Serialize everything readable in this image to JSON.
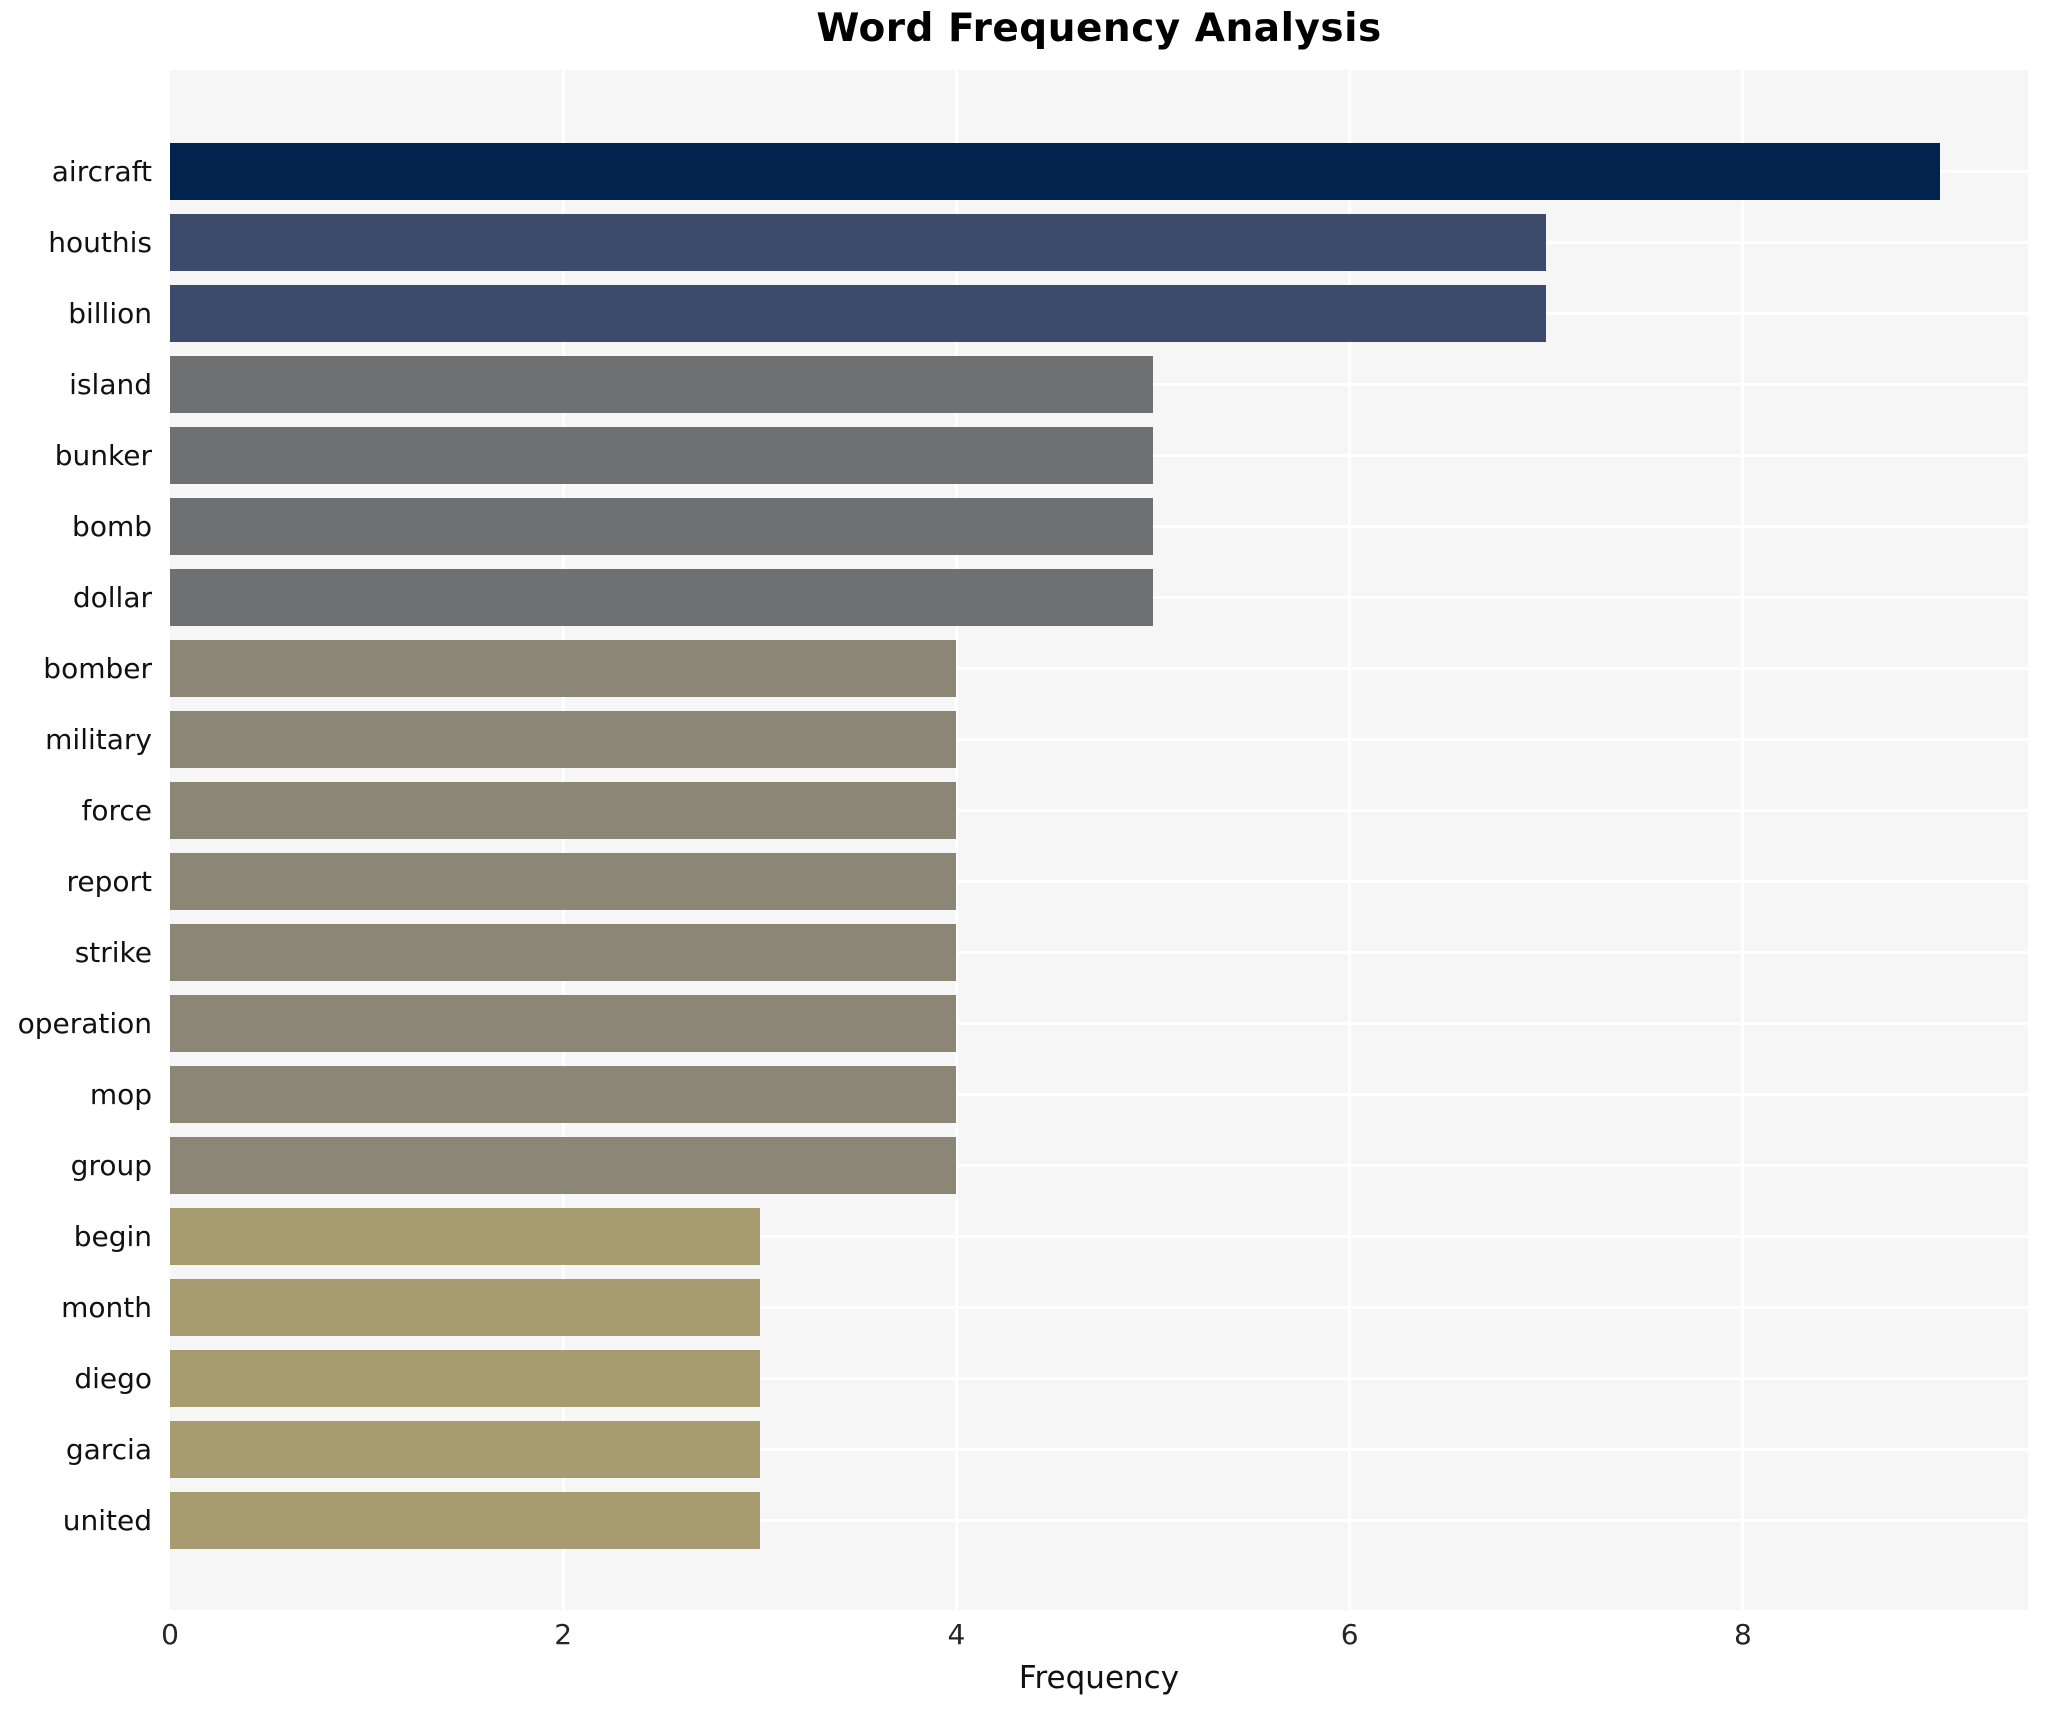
{
  "title": "Word Frequency Analysis",
  "x_axis": {
    "label": "Frequency",
    "ticks": [
      0,
      2,
      4,
      6,
      8
    ]
  },
  "colors": {
    "plot_background": "#f6f6f7",
    "gridline": "#ffffff",
    "title_text": "#000000",
    "tick_text": "#262626",
    "label_text": "#111111"
  },
  "chart_data": {
    "type": "bar",
    "orientation": "horizontal",
    "title": "Word Frequency Analysis",
    "xlabel": "Frequency",
    "ylabel": "",
    "xlim": [
      0,
      9.45
    ],
    "x_ticks": [
      0,
      2,
      4,
      6,
      8
    ],
    "grid": true,
    "legend": false,
    "categories": [
      "aircraft",
      "houthis",
      "billion",
      "island",
      "bunker",
      "bomb",
      "dollar",
      "bomber",
      "military",
      "force",
      "report",
      "strike",
      "operation",
      "mop",
      "group",
      "begin",
      "month",
      "diego",
      "garcia",
      "united"
    ],
    "values": [
      9,
      7,
      7,
      5,
      5,
      5,
      5,
      4,
      4,
      4,
      4,
      4,
      4,
      4,
      4,
      3,
      3,
      3,
      3,
      3
    ],
    "bar_colors": [
      "#02234e",
      "#3c4a6b",
      "#3c4a6b",
      "#6f7072",
      "#6f7072",
      "#6f7072",
      "#6f7072",
      "#8b8676",
      "#8b8676",
      "#8b8676",
      "#8b8676",
      "#8b8676",
      "#8b8676",
      "#8b8676",
      "#8b8676",
      "#a69c6f",
      "#a69c6f",
      "#a69c6f",
      "#a69c6f",
      "#a69c6f"
    ]
  }
}
